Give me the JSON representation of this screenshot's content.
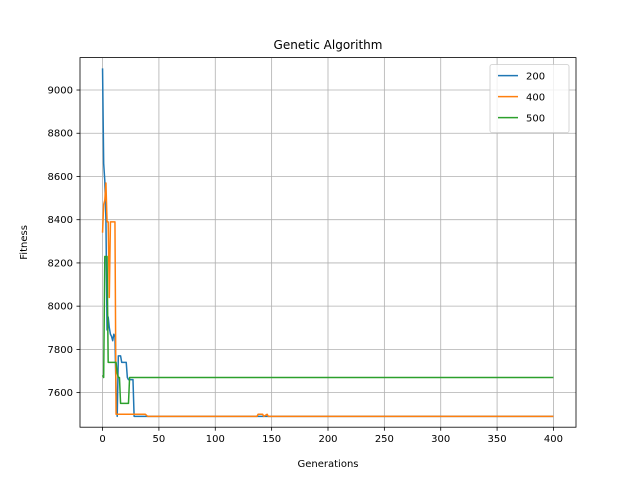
{
  "chart_data": {
    "type": "line",
    "title": "Genetic Algorithm",
    "xlabel": "Generations",
    "ylabel": "Fitness",
    "xlim": [
      -20,
      420
    ],
    "ylim": [
      7440,
      9150
    ],
    "xticks": [
      0,
      50,
      100,
      150,
      200,
      250,
      300,
      350,
      400
    ],
    "yticks": [
      7600,
      7800,
      8000,
      8200,
      8400,
      8600,
      8800,
      9000
    ],
    "grid": true,
    "legend_position": "top-right",
    "series": [
      {
        "name": "200",
        "color": "#1f77b4",
        "x": [
          0,
          1,
          2,
          3,
          4,
          5,
          6,
          7,
          8,
          9,
          10,
          11,
          12,
          13,
          14,
          15,
          16,
          17,
          18,
          19,
          20,
          21,
          22,
          23,
          24,
          25,
          26,
          27,
          28,
          29,
          30,
          31,
          35,
          40,
          50,
          100,
          150,
          200,
          250,
          300,
          350,
          400
        ],
        "y": [
          9100,
          8660,
          8580,
          8400,
          7890,
          7950,
          7900,
          7870,
          7860,
          7840,
          7870,
          7860,
          7600,
          7490,
          7770,
          7770,
          7770,
          7740,
          7740,
          7740,
          7740,
          7740,
          7670,
          7660,
          7660,
          7660,
          7660,
          7660,
          7490,
          7490,
          7490,
          7490,
          7490,
          7490,
          7490,
          7490,
          7490,
          7490,
          7490,
          7490,
          7490,
          7490
        ]
      },
      {
        "name": "400",
        "color": "#ff7f0e",
        "x": [
          0,
          1,
          2,
          3,
          4,
          5,
          6,
          7,
          8,
          9,
          10,
          11,
          12,
          13,
          14,
          15,
          16,
          17,
          18,
          19,
          20,
          25,
          30,
          35,
          38,
          40,
          50,
          100,
          137,
          138,
          142,
          143,
          146,
          147,
          150,
          200,
          250,
          300,
          350,
          400
        ],
        "y": [
          8340,
          8470,
          8490,
          8570,
          8390,
          8390,
          8040,
          8390,
          8390,
          8390,
          8390,
          8390,
          7500,
          7500,
          7500,
          7500,
          7500,
          7500,
          7500,
          7500,
          7500,
          7500,
          7500,
          7500,
          7500,
          7490,
          7490,
          7490,
          7490,
          7500,
          7500,
          7490,
          7500,
          7490,
          7490,
          7490,
          7490,
          7490,
          7490,
          7490
        ]
      },
      {
        "name": "500",
        "color": "#2ca02c",
        "x": [
          0,
          1,
          2,
          3,
          4,
          5,
          6,
          7,
          8,
          9,
          10,
          11,
          12,
          13,
          14,
          15,
          16,
          17,
          18,
          19,
          20,
          21,
          22,
          23,
          24,
          25,
          26,
          27,
          28,
          29,
          30,
          40,
          50,
          100,
          150,
          200,
          250,
          300,
          350,
          400
        ],
        "y": [
          7680,
          7670,
          8230,
          8230,
          8230,
          7740,
          7740,
          7740,
          7740,
          7740,
          7740,
          7740,
          7740,
          7690,
          7670,
          7670,
          7550,
          7550,
          7550,
          7550,
          7550,
          7550,
          7550,
          7550,
          7670,
          7670,
          7670,
          7670,
          7670,
          7670,
          7670,
          7670,
          7670,
          7670,
          7670,
          7670,
          7670,
          7670,
          7670,
          7670
        ]
      }
    ]
  }
}
